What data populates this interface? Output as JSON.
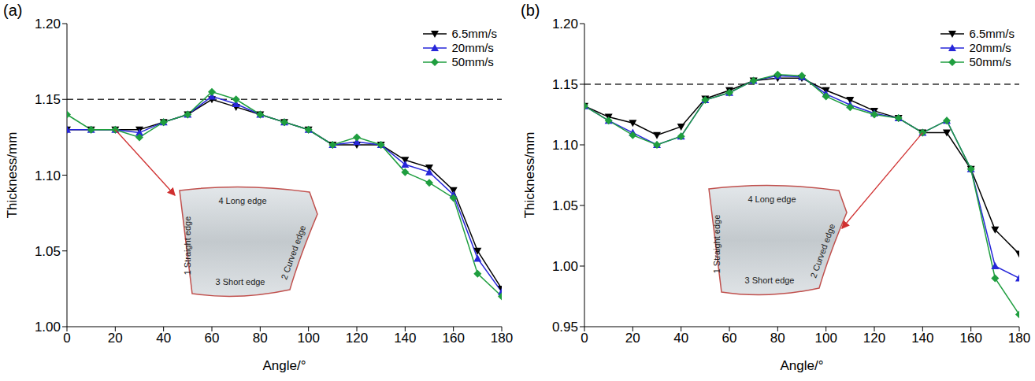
{
  "chart_data": [
    {
      "type": "line",
      "panel_label": "(a)",
      "x_label": "Angle/°",
      "y_label": "Thickness/mm",
      "x": [
        0,
        10,
        20,
        30,
        40,
        50,
        60,
        70,
        80,
        90,
        100,
        110,
        120,
        130,
        140,
        150,
        160,
        170,
        180
      ],
      "xlim": [
        0,
        180
      ],
      "xticks": [
        0,
        20,
        40,
        60,
        80,
        100,
        120,
        140,
        160,
        180
      ],
      "ylim": [
        1,
        1.2
      ],
      "yticks": [
        {
          "value": 1,
          "label": "1.00"
        },
        1.05,
        {
          "value": 1.1,
          "label": "1.10"
        },
        1.15,
        {
          "value": 1.2,
          "label": "1.20"
        }
      ],
      "reference_line": {
        "value": 1.15,
        "line_style": "dashed"
      },
      "legend": "top-right",
      "grid": false,
      "series": [
        {
          "name": "6.5mm/s",
          "color": "#000000",
          "marker": "triangle-down",
          "line_style": "solid",
          "values": [
            1.13,
            1.13,
            1.13,
            1.13,
            1.135,
            1.14,
            1.15,
            1.145,
            1.14,
            1.135,
            1.13,
            1.12,
            1.12,
            1.12,
            1.11,
            1.105,
            1.09,
            1.05,
            1.025
          ]
        },
        {
          "name": "20mm/s",
          "color": "#2626d9",
          "marker": "triangle-up",
          "line_style": "solid",
          "values": [
            1.13,
            1.13,
            1.13,
            1.128,
            1.135,
            1.14,
            1.152,
            1.147,
            1.14,
            1.135,
            1.13,
            1.12,
            1.122,
            1.12,
            1.107,
            1.102,
            1.087,
            1.045,
            1.023
          ]
        },
        {
          "name": "50mm/s",
          "color": "#1f9e3f",
          "marker": "diamond",
          "line_style": "solid",
          "values": [
            1.14,
            1.13,
            1.13,
            1.125,
            1.135,
            1.14,
            1.155,
            1.15,
            1.14,
            1.135,
            1.13,
            1.12,
            1.125,
            1.12,
            1.102,
            1.095,
            1.085,
            1.035,
            1.02
          ]
        }
      ],
      "annotations": [
        "1 Straight edge",
        "2 Curved edge",
        "3 Short edge",
        "4 Long edge"
      ],
      "arrow_to": [
        20,
        1.13
      ]
    },
    {
      "type": "line",
      "panel_label": "(b)",
      "x_label": "Angle/°",
      "y_label": "Thickness/mm",
      "x": [
        0,
        10,
        20,
        30,
        40,
        50,
        60,
        70,
        80,
        90,
        100,
        110,
        120,
        130,
        140,
        150,
        160,
        170,
        180
      ],
      "xlim": [
        0,
        180
      ],
      "xticks": [
        0,
        20,
        40,
        60,
        80,
        100,
        120,
        140,
        160,
        180
      ],
      "ylim": [
        0.95,
        1.2
      ],
      "yticks": [
        0.95,
        {
          "value": 1,
          "label": "1.00"
        },
        1.05,
        {
          "value": 1.1,
          "label": "1.10"
        },
        1.15,
        {
          "value": 1.2,
          "label": "1.20"
        }
      ],
      "reference_line": {
        "value": 1.15,
        "line_style": "dashed"
      },
      "legend": "top-right",
      "grid": false,
      "series": [
        {
          "name": "6.5mm/s",
          "color": "#000000",
          "marker": "triangle-down",
          "line_style": "solid",
          "values": [
            1.132,
            1.123,
            1.118,
            1.108,
            1.115,
            1.138,
            1.145,
            1.153,
            1.155,
            1.155,
            1.145,
            1.137,
            1.128,
            1.122,
            1.11,
            1.11,
            1.08,
            1.03,
            1.01
          ]
        },
        {
          "name": "20mm/s",
          "color": "#2626d9",
          "marker": "triangle-up",
          "line_style": "solid",
          "values": [
            1.132,
            1.12,
            1.11,
            1.1,
            1.107,
            1.137,
            1.143,
            1.153,
            1.157,
            1.156,
            1.142,
            1.133,
            1.126,
            1.122,
            1.11,
            1.12,
            1.08,
            1.0,
            0.99
          ]
        },
        {
          "name": "50mm/s",
          "color": "#1f9e3f",
          "marker": "diamond",
          "line_style": "solid",
          "values": [
            1.132,
            1.12,
            1.108,
            1.1,
            1.107,
            1.137,
            1.143,
            1.153,
            1.158,
            1.157,
            1.14,
            1.131,
            1.125,
            1.122,
            1.11,
            1.12,
            1.08,
            0.99,
            0.96
          ]
        }
      ],
      "annotations": [
        "1 Straight edge",
        "2 Curved edge",
        "3 Short edge",
        "4 Long edge"
      ],
      "arrow_to": [
        140,
        1.11
      ]
    }
  ]
}
